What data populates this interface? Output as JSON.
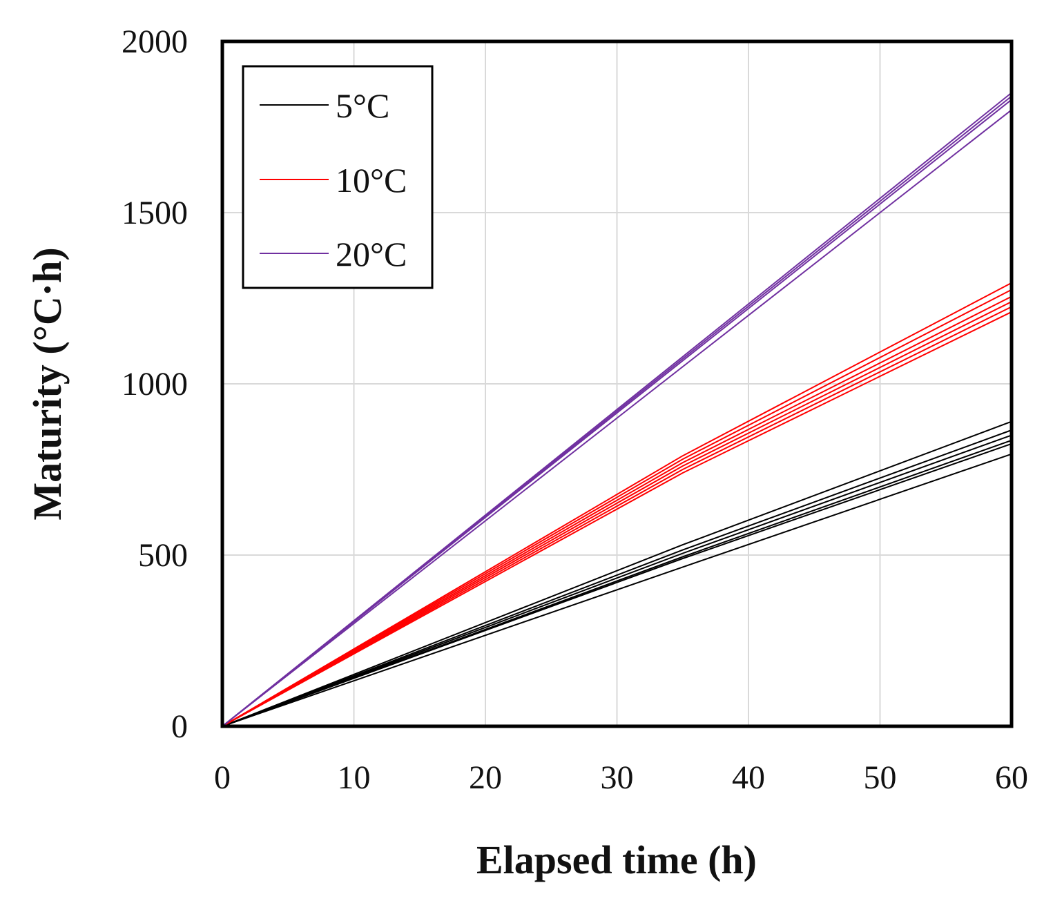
{
  "chart_data": {
    "type": "line",
    "title": "",
    "xlabel": "Elapsed time (h)",
    "ylabel": "Maturity (°C·h)",
    "xlim": [
      0,
      60
    ],
    "ylim": [
      0,
      2000
    ],
    "xticks": [
      "0",
      "10",
      "20",
      "30",
      "40",
      "50",
      "60"
    ],
    "yticks": [
      "0",
      "500",
      "1000",
      "1500",
      "2000"
    ],
    "grid": true,
    "legend_position": "top-left",
    "colors": {
      "5°C": "#000000",
      "10°C": "#ff0000",
      "20°C": "#7030a0"
    },
    "legend": [
      {
        "label": "5°C",
        "color": "#000000"
      },
      {
        "label": "10°C",
        "color": "#ff0000"
      },
      {
        "label": "20°C",
        "color": "#7030a0"
      }
    ],
    "series": [
      {
        "name": "5°C",
        "color": "#000000",
        "x": [
          0,
          35,
          60
        ],
        "y": [
          0,
          530,
          890
        ]
      },
      {
        "name": "5°C",
        "color": "#000000",
        "x": [
          0,
          35,
          60
        ],
        "y": [
          0,
          515,
          865
        ]
      },
      {
        "name": "5°C",
        "color": "#000000",
        "x": [
          0,
          35,
          60
        ],
        "y": [
          0,
          505,
          850
        ]
      },
      {
        "name": "5°C",
        "color": "#000000",
        "x": [
          0,
          35,
          60
        ],
        "y": [
          0,
          495,
          835
        ]
      },
      {
        "name": "5°C",
        "color": "#000000",
        "x": [
          0,
          35,
          60
        ],
        "y": [
          0,
          490,
          825
        ]
      },
      {
        "name": "5°C",
        "color": "#000000",
        "x": [
          0,
          35,
          60
        ],
        "y": [
          0,
          465,
          795
        ]
      },
      {
        "name": "10°C",
        "color": "#ff0000",
        "x": [
          0,
          35,
          60
        ],
        "y": [
          0,
          790,
          1295
        ]
      },
      {
        "name": "10°C",
        "color": "#ff0000",
        "x": [
          0,
          35,
          60
        ],
        "y": [
          0,
          780,
          1275
        ]
      },
      {
        "name": "10°C",
        "color": "#ff0000",
        "x": [
          0,
          35,
          60
        ],
        "y": [
          0,
          770,
          1255
        ]
      },
      {
        "name": "10°C",
        "color": "#ff0000",
        "x": [
          0,
          35,
          60
        ],
        "y": [
          0,
          760,
          1240
        ]
      },
      {
        "name": "10°C",
        "color": "#ff0000",
        "x": [
          0,
          35,
          60
        ],
        "y": [
          0,
          750,
          1225
        ]
      },
      {
        "name": "10°C",
        "color": "#ff0000",
        "x": [
          0,
          35,
          60
        ],
        "y": [
          0,
          740,
          1210
        ]
      },
      {
        "name": "20°C",
        "color": "#7030a0",
        "x": [
          0,
          60
        ],
        "y": [
          0,
          1850
        ]
      },
      {
        "name": "20°C",
        "color": "#7030a0",
        "x": [
          0,
          60
        ],
        "y": [
          0,
          1840
        ]
      },
      {
        "name": "20°C",
        "color": "#7030a0",
        "x": [
          0,
          60
        ],
        "y": [
          0,
          1830
        ]
      },
      {
        "name": "20°C",
        "color": "#7030a0",
        "x": [
          0,
          60
        ],
        "y": [
          0,
          1800
        ]
      }
    ]
  }
}
